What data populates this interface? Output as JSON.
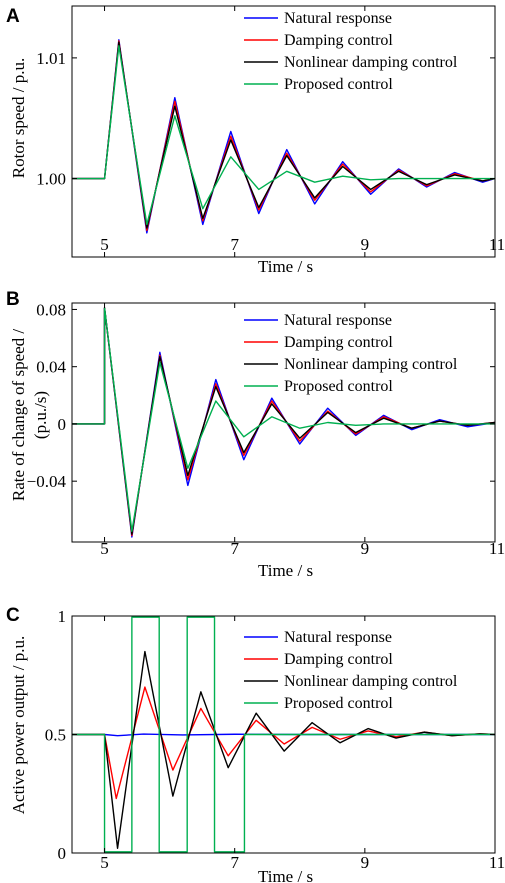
{
  "chart_data": [
    {
      "type": "line",
      "panel": "A",
      "xlabel": "Time / s",
      "ylabel": "Rotor speed / p.u.",
      "xlim": [
        4.5,
        11
      ],
      "ylim": [
        0.9935,
        1.0143
      ],
      "xticks": [
        5,
        7,
        9,
        11
      ],
      "yticks": [
        1.0,
        1.01
      ],
      "ytick_labels": [
        "1.00",
        "1.01"
      ],
      "legend_position": "top-right",
      "grid": false,
      "series": [
        {
          "name": "Natural response",
          "color": "#0000ff",
          "points": [
            [
              4.5,
              1.0
            ],
            [
              5.0,
              1.0
            ],
            [
              5.22,
              1.0115
            ],
            [
              5.65,
              0.9955
            ],
            [
              6.08,
              1.0067
            ],
            [
              6.51,
              0.9962
            ],
            [
              6.94,
              1.0039
            ],
            [
              7.37,
              0.9971
            ],
            [
              7.8,
              1.0024
            ],
            [
              8.23,
              0.9979
            ],
            [
              8.66,
              1.0014
            ],
            [
              9.09,
              0.9987
            ],
            [
              9.52,
              1.0008
            ],
            [
              9.95,
              0.9993
            ],
            [
              10.38,
              1.0005
            ],
            [
              10.81,
              0.9997
            ],
            [
              11.0,
              1.0
            ]
          ]
        },
        {
          "name": "Damping control",
          "color": "#ff0000",
          "points": [
            [
              4.5,
              1.0
            ],
            [
              5.0,
              1.0
            ],
            [
              5.22,
              1.0114
            ],
            [
              5.65,
              0.9957
            ],
            [
              6.08,
              1.0064
            ],
            [
              6.51,
              0.9965
            ],
            [
              6.94,
              1.0035
            ],
            [
              7.37,
              0.9974
            ],
            [
              7.8,
              1.0021
            ],
            [
              8.23,
              0.9982
            ],
            [
              8.66,
              1.0012
            ],
            [
              9.09,
              0.9989
            ],
            [
              9.52,
              1.0007
            ],
            [
              9.95,
              0.9994
            ],
            [
              10.38,
              1.0004
            ],
            [
              10.81,
              0.9998
            ],
            [
              11.0,
              1.0
            ]
          ]
        },
        {
          "name": "Nonlinear damping control",
          "color": "#000000",
          "points": [
            [
              4.5,
              1.0
            ],
            [
              5.0,
              1.0
            ],
            [
              5.22,
              1.0113
            ],
            [
              5.65,
              0.9959
            ],
            [
              6.08,
              1.006
            ],
            [
              6.51,
              0.9967
            ],
            [
              6.94,
              1.0032
            ],
            [
              7.37,
              0.9976
            ],
            [
              7.8,
              1.0019
            ],
            [
              8.23,
              0.9984
            ],
            [
              8.66,
              1.001
            ],
            [
              9.09,
              0.9991
            ],
            [
              9.52,
              1.0006
            ],
            [
              9.95,
              0.9995
            ],
            [
              10.38,
              1.0003
            ],
            [
              10.81,
              0.9998
            ],
            [
              11.0,
              1.0
            ]
          ]
        },
        {
          "name": "Proposed control",
          "color": "#00b050",
          "points": [
            [
              4.5,
              1.0
            ],
            [
              5.0,
              1.0
            ],
            [
              5.22,
              1.011
            ],
            [
              5.65,
              0.9962
            ],
            [
              6.08,
              1.0052
            ],
            [
              6.51,
              0.9975
            ],
            [
              6.94,
              1.0018
            ],
            [
              7.37,
              0.9991
            ],
            [
              7.8,
              1.0006
            ],
            [
              8.23,
              0.9997
            ],
            [
              8.66,
              1.0002
            ],
            [
              9.09,
              0.9999
            ],
            [
              9.52,
              1.0
            ],
            [
              11.0,
              1.0
            ]
          ]
        }
      ]
    },
    {
      "type": "line",
      "panel": "B",
      "xlabel": "Time / s",
      "ylabel": "Rate of change of speed / (p.u./s)",
      "xlim": [
        4.5,
        11
      ],
      "ylim": [
        -0.0825,
        0.0845
      ],
      "xticks": [
        5,
        7,
        9,
        11
      ],
      "yticks": [
        -0.04,
        0,
        0.04,
        0.08
      ],
      "ytick_labels": [
        "−0.04",
        "0",
        "0.04",
        "0.08"
      ],
      "legend_position": "top-right",
      "grid": false,
      "series": [
        {
          "name": "Natural response",
          "color": "#0000ff",
          "points": [
            [
              4.5,
              0
            ],
            [
              5.0,
              0
            ],
            [
              5.0,
              0.081
            ],
            [
              5.42,
              -0.079
            ],
            [
              5.85,
              0.05
            ],
            [
              6.28,
              -0.043
            ],
            [
              6.71,
              0.031
            ],
            [
              7.14,
              -0.025
            ],
            [
              7.57,
              0.018
            ],
            [
              8.0,
              -0.014
            ],
            [
              8.43,
              0.011
            ],
            [
              8.86,
              -0.008
            ],
            [
              9.29,
              0.006
            ],
            [
              9.72,
              -0.004
            ],
            [
              10.15,
              0.003
            ],
            [
              10.58,
              -0.002
            ],
            [
              11.0,
              0.001
            ]
          ]
        },
        {
          "name": "Damping control",
          "color": "#ff0000",
          "points": [
            [
              4.5,
              0
            ],
            [
              5.0,
              0
            ],
            [
              5.0,
              0.081
            ],
            [
              5.42,
              -0.078
            ],
            [
              5.85,
              0.048
            ],
            [
              6.28,
              -0.039
            ],
            [
              6.71,
              0.028
            ],
            [
              7.14,
              -0.022
            ],
            [
              7.57,
              0.016
            ],
            [
              8.0,
              -0.012
            ],
            [
              8.43,
              0.009
            ],
            [
              8.86,
              -0.007
            ],
            [
              9.29,
              0.005
            ],
            [
              9.72,
              -0.003
            ],
            [
              10.15,
              0.002
            ],
            [
              10.58,
              -0.001
            ],
            [
              11.0,
              0.001
            ]
          ]
        },
        {
          "name": "Nonlinear damping control",
          "color": "#000000",
          "points": [
            [
              4.5,
              0
            ],
            [
              5.0,
              0
            ],
            [
              5.0,
              0.081
            ],
            [
              5.42,
              -0.077
            ],
            [
              5.85,
              0.047
            ],
            [
              6.28,
              -0.036
            ],
            [
              6.71,
              0.026
            ],
            [
              7.14,
              -0.02
            ],
            [
              7.57,
              0.014
            ],
            [
              8.0,
              -0.01
            ],
            [
              8.43,
              0.008
            ],
            [
              8.86,
              -0.006
            ],
            [
              9.29,
              0.004
            ],
            [
              9.72,
              -0.003
            ],
            [
              10.15,
              0.002
            ],
            [
              10.58,
              -0.001
            ],
            [
              11.0,
              0.001
            ]
          ]
        },
        {
          "name": "Proposed control",
          "color": "#00b050",
          "points": [
            [
              4.5,
              0
            ],
            [
              5.0,
              0
            ],
            [
              5.0,
              0.081
            ],
            [
              5.42,
              -0.075
            ],
            [
              5.85,
              0.043
            ],
            [
              6.28,
              -0.031
            ],
            [
              6.71,
              0.016
            ],
            [
              7.14,
              -0.009
            ],
            [
              7.57,
              0.005
            ],
            [
              8.0,
              -0.003
            ],
            [
              8.43,
              0.001
            ],
            [
              8.86,
              -0.001
            ],
            [
              9.29,
              0
            ],
            [
              11.0,
              0
            ]
          ]
        }
      ]
    },
    {
      "type": "line",
      "panel": "C",
      "xlabel": "Time / s",
      "ylabel": "Active power output / p.u.",
      "xlim": [
        4.5,
        11
      ],
      "ylim": [
        0,
        1
      ],
      "xticks": [
        5,
        7,
        9,
        11
      ],
      "yticks": [
        0,
        0.5,
        1
      ],
      "ytick_labels": [
        "0",
        "0.5",
        "1"
      ],
      "legend_position": "top-right",
      "grid": false,
      "series": [
        {
          "name": "Natural response",
          "color": "#0000ff",
          "points": [
            [
              4.5,
              0.5
            ],
            [
              5.0,
              0.5
            ],
            [
              5.2,
              0.495
            ],
            [
              5.6,
              0.502
            ],
            [
              6.2,
              0.498
            ],
            [
              7.0,
              0.501
            ],
            [
              8.0,
              0.5
            ],
            [
              11.0,
              0.5
            ]
          ]
        },
        {
          "name": "Damping control",
          "color": "#ff0000",
          "points": [
            [
              4.5,
              0.5
            ],
            [
              5.0,
              0.5
            ],
            [
              5.18,
              0.23
            ],
            [
              5.62,
              0.7
            ],
            [
              6.05,
              0.35
            ],
            [
              6.48,
              0.61
            ],
            [
              6.9,
              0.41
            ],
            [
              7.33,
              0.56
            ],
            [
              7.76,
              0.46
            ],
            [
              8.19,
              0.53
            ],
            [
              8.62,
              0.48
            ],
            [
              9.05,
              0.515
            ],
            [
              9.48,
              0.49
            ],
            [
              9.91,
              0.51
            ],
            [
              10.34,
              0.495
            ],
            [
              10.77,
              0.503
            ],
            [
              11.0,
              0.5
            ]
          ]
        },
        {
          "name": "Nonlinear damping control",
          "color": "#000000",
          "points": [
            [
              4.5,
              0.5
            ],
            [
              5.0,
              0.5
            ],
            [
              5.2,
              0.02
            ],
            [
              5.62,
              0.85
            ],
            [
              6.05,
              0.24
            ],
            [
              6.48,
              0.68
            ],
            [
              6.9,
              0.36
            ],
            [
              7.33,
              0.59
            ],
            [
              7.76,
              0.43
            ],
            [
              8.19,
              0.55
            ],
            [
              8.62,
              0.465
            ],
            [
              9.05,
              0.525
            ],
            [
              9.48,
              0.485
            ],
            [
              9.91,
              0.51
            ],
            [
              10.34,
              0.495
            ],
            [
              10.77,
              0.503
            ],
            [
              11.0,
              0.5
            ]
          ]
        },
        {
          "name": "Proposed control",
          "color": "#00b050",
          "points": [
            [
              4.5,
              0.5
            ],
            [
              5.0,
              0.5
            ],
            [
              5.0,
              0.005
            ],
            [
              5.42,
              0.005
            ],
            [
              5.42,
              0.995
            ],
            [
              5.84,
              0.995
            ],
            [
              5.84,
              0.005
            ],
            [
              6.27,
              0.005
            ],
            [
              6.27,
              0.995
            ],
            [
              6.69,
              0.995
            ],
            [
              6.69,
              0.005
            ],
            [
              7.15,
              0.005
            ],
            [
              7.15,
              0.5
            ],
            [
              11.0,
              0.5
            ]
          ]
        }
      ]
    }
  ]
}
